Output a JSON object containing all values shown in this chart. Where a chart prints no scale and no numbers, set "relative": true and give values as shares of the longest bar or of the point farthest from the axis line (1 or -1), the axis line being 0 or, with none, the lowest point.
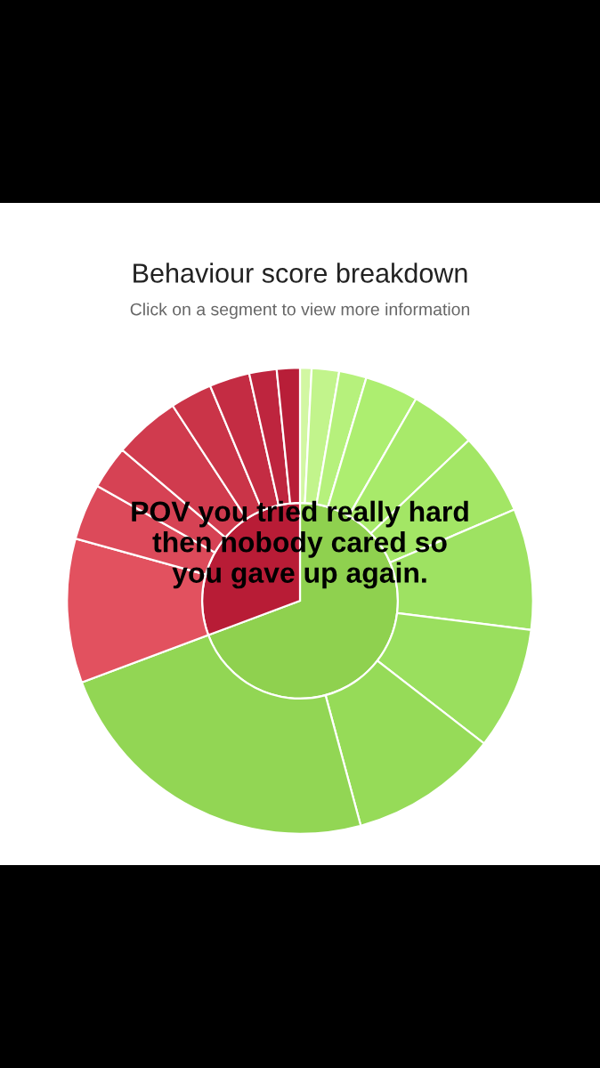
{
  "chart_data": {
    "type": "pie",
    "title": "Behaviour score breakdown",
    "subtitle": "Click on a segment to view more information",
    "relative": true,
    "annotations": [
      "POV you tried really hard then nobody cared so you gave up again."
    ],
    "series": [
      {
        "values": [
          69.3,
          30.7
        ],
        "colors": [
          "#8fd14f",
          "#b81c36"
        ]
      },
      {
        "values": [
          0.8,
          1.9,
          1.9,
          3.7,
          4.6,
          5.7,
          8.4,
          8.5,
          10.3,
          23.5,
          10.0,
          3.9,
          3.0,
          4.6,
          2.9,
          2.8,
          1.9,
          1.6
        ],
        "colors": [
          "#d2f7a2",
          "#c2f48c",
          "#b6f17c",
          "#adee70",
          "#a8ea6a",
          "#a3e665",
          "#9ee262",
          "#9adf5e",
          "#96db58",
          "#92d654",
          "#e2515f",
          "#dc4a5a",
          "#d64254",
          "#d03b4e",
          "#ca3448",
          "#c42c43",
          "#be253e",
          "#b81e38"
        ]
      }
    ]
  }
}
